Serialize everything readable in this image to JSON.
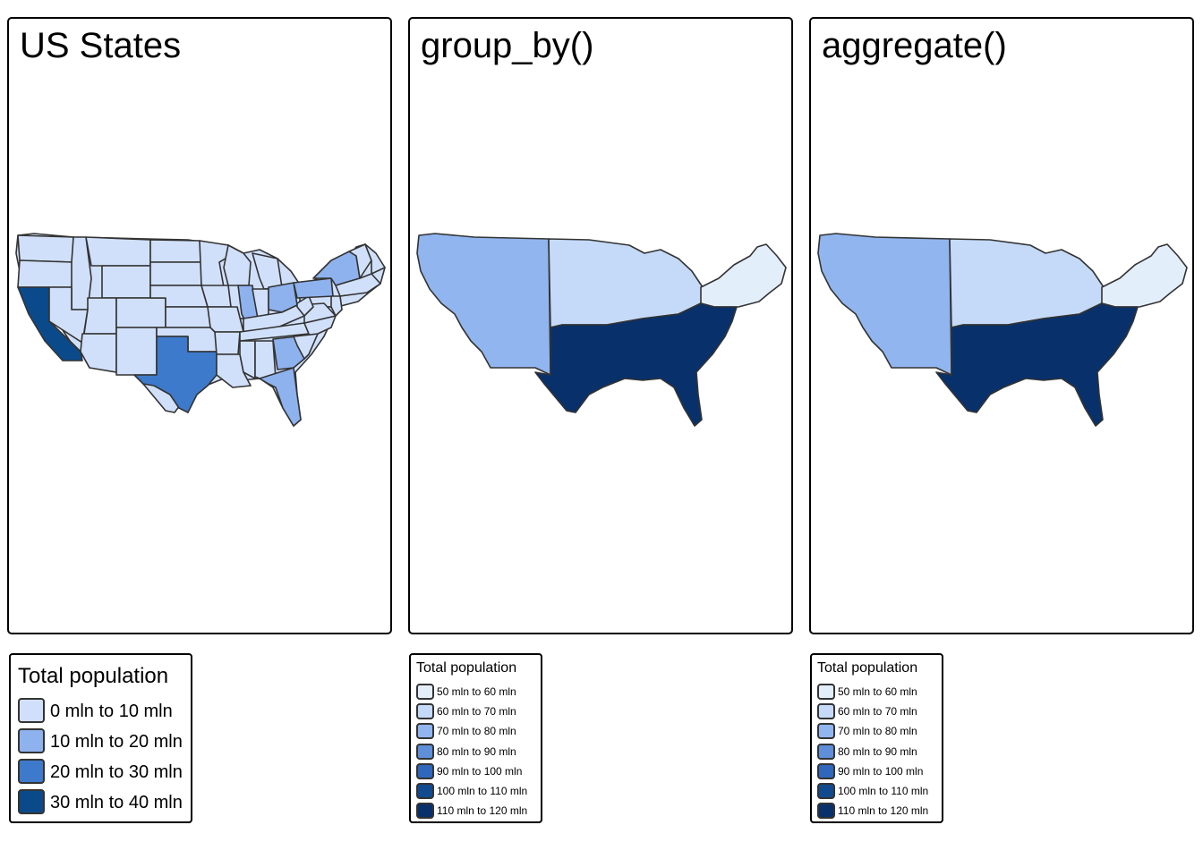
{
  "panels": [
    {
      "title": "US States",
      "legend": {
        "title": "Total population",
        "items": [
          {
            "label": "0 mln to 10 mln",
            "color": "#D1E0FA"
          },
          {
            "label": "10 mln to 20 mln",
            "color": "#8EB2EE"
          },
          {
            "label": "20 mln to 30 mln",
            "color": "#3D7ACB"
          },
          {
            "label": "30 mln to 40 mln",
            "color": "#0B4A8A"
          }
        ]
      }
    },
    {
      "title": "group_by()",
      "legend": {
        "title": "Total population",
        "items": [
          {
            "label": "50 mln to 60 mln",
            "color": "#E3EEFB"
          },
          {
            "label": "60 mln to 70 mln",
            "color": "#C4DAF8"
          },
          {
            "label": "70 mln to 80 mln",
            "color": "#91B5EE"
          },
          {
            "label": "80 mln to 90 mln",
            "color": "#5E8FD8"
          },
          {
            "label": "90 mln to 100 mln",
            "color": "#2E67BB"
          },
          {
            "label": "100 mln to 110 mln",
            "color": "#114A8F"
          },
          {
            "label": "110 mln to 120 mln",
            "color": "#08306B"
          }
        ]
      }
    },
    {
      "title": "aggregate()",
      "legend": {
        "title": "Total population",
        "items": [
          {
            "label": "50 mln to 60 mln",
            "color": "#E3EEFB"
          },
          {
            "label": "60 mln to 70 mln",
            "color": "#C4DAF8"
          },
          {
            "label": "70 mln to 80 mln",
            "color": "#91B5EE"
          },
          {
            "label": "80 mln to 90 mln",
            "color": "#5E8FD8"
          },
          {
            "label": "90 mln to 100 mln",
            "color": "#2E67BB"
          },
          {
            "label": "100 mln to 110 mln",
            "color": "#114A8F"
          },
          {
            "label": "110 mln to 120 mln",
            "color": "#08306B"
          }
        ]
      }
    }
  ],
  "map_colors": {
    "stroke": "#333333",
    "state_default": "#D1E0FA",
    "state_10_20": "#8EB2EE",
    "state_20_30": "#3D7ACB",
    "state_30_40": "#0B4A8A",
    "region_west": "#91B5EE",
    "region_midwest": "#C4DAF8",
    "region_northeast": "#E3EEFB",
    "region_south": "#08306B"
  }
}
